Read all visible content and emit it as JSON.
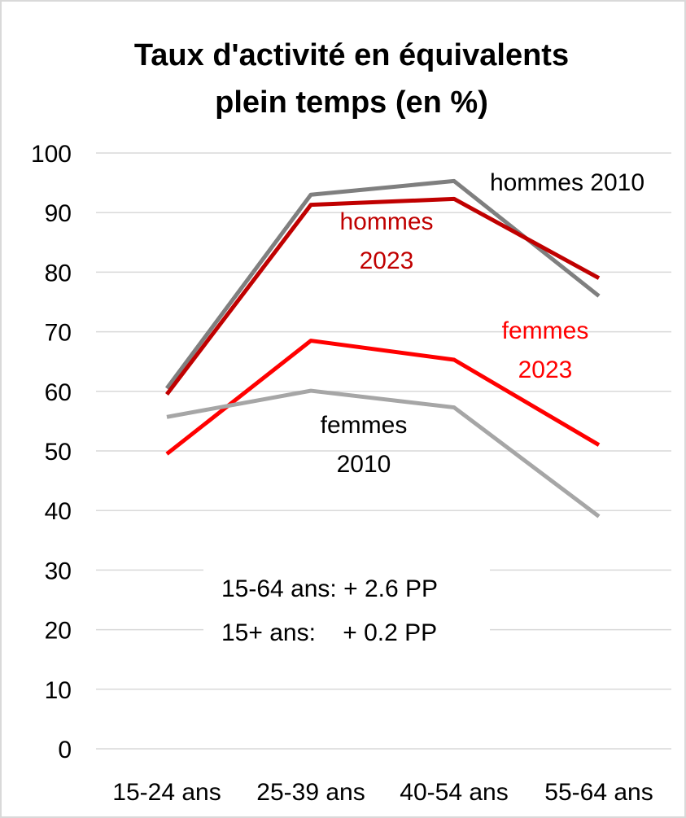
{
  "chart_data": {
    "type": "line",
    "title": "Taux d'activité en équivalents plein temps (en %)",
    "categories": [
      "15-24 ans",
      "25-39 ans",
      "40-54 ans",
      "55-64 ans"
    ],
    "series": [
      {
        "name": "hommes 2010",
        "color": "#7f7f7f",
        "values": [
          60.5,
          93,
          95.3,
          76
        ]
      },
      {
        "name": "hommes 2023",
        "color": "#c00000",
        "values": [
          59.5,
          91.3,
          92.3,
          79
        ]
      },
      {
        "name": "femmes 2023",
        "color": "#ff0000",
        "values": [
          49.5,
          68.5,
          65.3,
          51
        ]
      },
      {
        "name": "femmes 2010",
        "color": "#a6a6a6",
        "values": [
          55.7,
          60.1,
          57.3,
          39
        ]
      }
    ],
    "annotations": [
      "15-64 ans: + 2.6 PP",
      "15+ ans:    + 0.2 PP"
    ],
    "ylim": [
      0,
      100
    ],
    "yticks": [
      0,
      10,
      20,
      30,
      40,
      50,
      60,
      70,
      80,
      90,
      100
    ],
    "grid": true
  }
}
